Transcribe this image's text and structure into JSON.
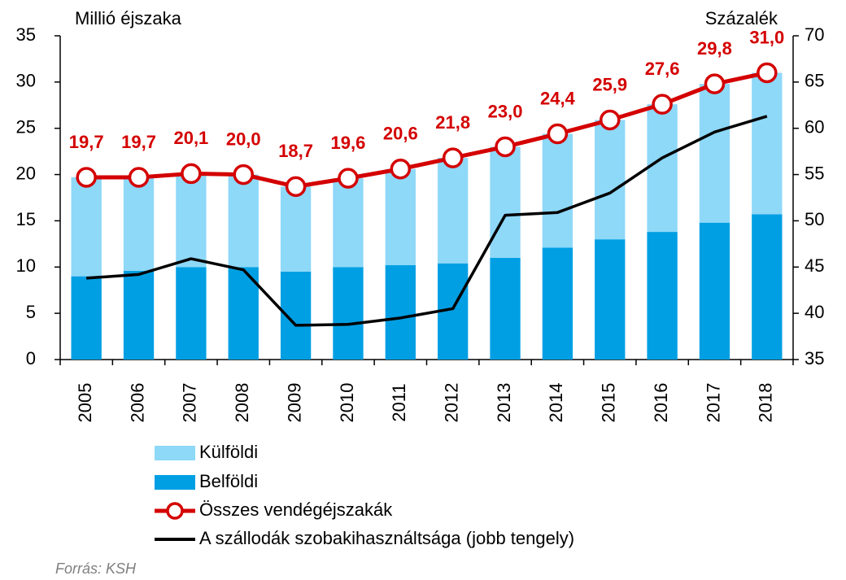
{
  "chart_data": {
    "type": "bar",
    "stacked": true,
    "y_label": "Millió éjszaka",
    "y2_label": "Százalék",
    "categories": [
      "2005",
      "2006",
      "2007",
      "2008",
      "2009",
      "2010",
      "2011",
      "2012",
      "2013",
      "2014",
      "2015",
      "2016",
      "2017",
      "2018"
    ],
    "series": [
      {
        "name": "Külföldi",
        "type": "bar",
        "color": "#8ed8f8",
        "values": [
          10.7,
          10.1,
          10.1,
          10.0,
          9.2,
          9.6,
          10.4,
          11.4,
          12.0,
          12.3,
          12.9,
          13.8,
          15.0,
          15.3
        ]
      },
      {
        "name": "Belföldi",
        "type": "bar",
        "color": "#009fe3",
        "values": [
          9.0,
          9.6,
          10.0,
          10.0,
          9.5,
          10.0,
          10.2,
          10.4,
          11.0,
          12.1,
          13.0,
          13.8,
          14.8,
          15.7
        ]
      },
      {
        "name": "Összes vendégéjszakák",
        "type": "line",
        "color": "#d40000",
        "marker": "circle",
        "values": [
          19.7,
          19.7,
          20.1,
          20.0,
          18.7,
          19.6,
          20.6,
          21.8,
          23.0,
          24.4,
          25.9,
          27.6,
          29.8,
          31.0
        ],
        "value_labels": [
          "19,7",
          "19,7",
          "20,1",
          "20,0",
          "18,7",
          "19,6",
          "20,6",
          "21,8",
          "23,0",
          "24,4",
          "25,9",
          "27,6",
          "29,8",
          "31,0"
        ]
      },
      {
        "name": "A szállodák szobakihasználtsága (jobb tengely)",
        "type": "line",
        "axis": "y2",
        "color": "#000000",
        "values": [
          43.8,
          44.2,
          45.9,
          44.7,
          38.7,
          38.8,
          39.5,
          40.5,
          50.6,
          50.9,
          53.0,
          56.8,
          59.6,
          61.3
        ]
      }
    ],
    "ylim": [
      0,
      35
    ],
    "yticks": [
      0,
      5,
      10,
      15,
      20,
      25,
      30,
      35
    ],
    "y2lim": [
      35,
      70
    ],
    "y2ticks": [
      35,
      40,
      45,
      50,
      55,
      60,
      65,
      70
    ],
    "grid": false,
    "source": "Forrás: KSH"
  }
}
